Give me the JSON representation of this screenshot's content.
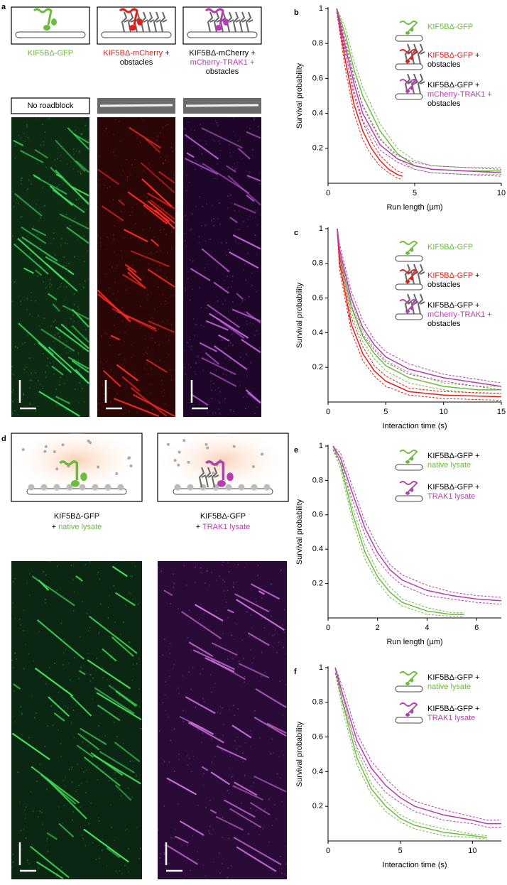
{
  "panels": {
    "a": {
      "label": "a",
      "captions": [
        [
          [
            {
              "text": "KIF5BΔ-GFP",
              "color": "#6dbb3f"
            }
          ]
        ],
        [
          [
            {
              "text": "KIF5BΔ-mCherry",
              "color": "#e0201b"
            },
            {
              "text": " +",
              "color": "#000000"
            }
          ],
          [
            {
              "text": "obstacles",
              "color": "#000000"
            }
          ]
        ],
        [
          [
            {
              "text": "KIF5BΔ-mCherry +",
              "color": "#000000"
            }
          ],
          [
            {
              "text": "mCherry-TRAK1 +",
              "color": "#b43fb0"
            }
          ],
          [
            {
              "text": "obstacles",
              "color": "#000000"
            }
          ]
        ]
      ],
      "roadblock": "No roadblock"
    },
    "d": {
      "label": "d",
      "captions": [
        [
          [
            {
              "text": "KIF5BΔ-GFP",
              "color": "#000000"
            }
          ],
          [
            {
              "text": "+ ",
              "color": "#000000"
            },
            {
              "text": "native lysate",
              "color": "#6dbb3f"
            }
          ]
        ],
        [
          [
            {
              "text": "KIF5BΔ-GFP",
              "color": "#000000"
            }
          ],
          [
            {
              "text": "+ ",
              "color": "#000000"
            },
            {
              "text": "TRAK1 lysate",
              "color": "#b43fb0"
            }
          ]
        ]
      ]
    }
  },
  "chart_data": [
    {
      "label": "b",
      "type": "line",
      "x_label": "Run length (µm)",
      "y_label": "Survival probability",
      "xlim": [
        0,
        10
      ],
      "ylim": [
        0,
        1
      ],
      "xticks": [
        0,
        5,
        10
      ],
      "yticks": [
        0.2,
        0.4,
        0.6,
        0.8,
        1
      ],
      "series": [
        {
          "legend": [
            [
              {
                "text": "KIF5BΔ-GFP",
                "color": "#6dbb3f"
              }
            ]
          ],
          "color": "#6dbb3f",
          "x": [
            0.5,
            1,
            1.5,
            2,
            3,
            4,
            5,
            6,
            8,
            10
          ],
          "values": [
            1,
            0.85,
            0.65,
            0.5,
            0.3,
            0.17,
            0.1,
            0.08,
            0.07,
            0.07
          ],
          "ci_low": [
            0.98,
            0.8,
            0.6,
            0.45,
            0.26,
            0.14,
            0.08,
            0.06,
            0.05,
            0.05
          ],
          "ci_high": [
            1,
            0.89,
            0.7,
            0.55,
            0.34,
            0.2,
            0.13,
            0.1,
            0.09,
            0.09
          ]
        },
        {
          "legend": [
            [
              {
                "text": "KIF5BΔ-GFP",
                "color": "#e0201b"
              },
              {
                "text": " +",
                "color": "#000000"
              }
            ],
            [
              {
                "text": "obstacles",
                "color": "#000000"
              }
            ]
          ],
          "color": "#e0201b",
          "x": [
            0.5,
            1,
            1.5,
            2,
            2.5,
            3,
            3.5,
            4,
            4.3
          ],
          "values": [
            1,
            0.7,
            0.45,
            0.3,
            0.2,
            0.13,
            0.08,
            0.05,
            0.04
          ],
          "ci_low": [
            0.98,
            0.65,
            0.4,
            0.25,
            0.16,
            0.1,
            0.06,
            0.03,
            0.02
          ],
          "ci_high": [
            1,
            0.75,
            0.5,
            0.35,
            0.24,
            0.16,
            0.11,
            0.07,
            0.06
          ]
        },
        {
          "legend": [
            [
              {
                "text": "KIF5BΔ-GFP +",
                "color": "#000000"
              }
            ],
            [
              {
                "text": "mCherry-TRAK1 +",
                "color": "#b43fb0"
              }
            ],
            [
              {
                "text": "obstacles",
                "color": "#000000"
              }
            ]
          ],
          "color": "#b43fb0",
          "x": [
            0.5,
            1,
            1.5,
            2,
            3,
            4,
            5,
            6,
            8,
            10
          ],
          "values": [
            1,
            0.78,
            0.57,
            0.4,
            0.22,
            0.14,
            0.1,
            0.08,
            0.07,
            0.06
          ],
          "ci_low": [
            0.98,
            0.74,
            0.53,
            0.36,
            0.19,
            0.12,
            0.08,
            0.06,
            0.05,
            0.04
          ],
          "ci_high": [
            1,
            0.82,
            0.61,
            0.44,
            0.25,
            0.16,
            0.12,
            0.1,
            0.09,
            0.08
          ]
        }
      ]
    },
    {
      "label": "c",
      "type": "line",
      "x_label": "Interaction time (s)",
      "y_label": "Survival probability",
      "xlim": [
        0,
        15
      ],
      "ylim": [
        0,
        1
      ],
      "xticks": [
        0,
        5,
        10,
        15
      ],
      "yticks": [
        0.2,
        0.4,
        0.6,
        0.8,
        1
      ],
      "series": [
        {
          "legend": [
            [
              {
                "text": "KIF5BΔ-GFP",
                "color": "#6dbb3f"
              }
            ]
          ],
          "color": "#6dbb3f",
          "x": [
            0.8,
            1,
            2,
            3,
            4,
            5,
            7,
            10,
            13,
            15
          ],
          "values": [
            1,
            0.85,
            0.55,
            0.38,
            0.28,
            0.21,
            0.14,
            0.09,
            0.07,
            0.07
          ],
          "ci_low": [
            0.97,
            0.82,
            0.52,
            0.35,
            0.25,
            0.18,
            0.11,
            0.07,
            0.05,
            0.05
          ],
          "ci_high": [
            1,
            0.88,
            0.58,
            0.41,
            0.31,
            0.24,
            0.17,
            0.11,
            0.09,
            0.09
          ]
        },
        {
          "legend": [
            [
              {
                "text": "KIF5BΔ-GFP",
                "color": "#e0201b"
              },
              {
                "text": " +",
                "color": "#000000"
              }
            ],
            [
              {
                "text": "obstacles",
                "color": "#000000"
              }
            ]
          ],
          "color": "#e0201b",
          "x": [
            0.8,
            1,
            2,
            3,
            4,
            5,
            7,
            10,
            15
          ],
          "values": [
            1,
            0.8,
            0.45,
            0.28,
            0.18,
            0.12,
            0.06,
            0.04,
            0.03
          ],
          "ci_low": [
            0.97,
            0.76,
            0.41,
            0.24,
            0.15,
            0.09,
            0.04,
            0.02,
            0.01
          ],
          "ci_high": [
            1,
            0.84,
            0.49,
            0.32,
            0.21,
            0.15,
            0.08,
            0.06,
            0.05
          ]
        },
        {
          "legend": [
            [
              {
                "text": "KIF5BΔ-GFP +",
                "color": "#000000"
              }
            ],
            [
              {
                "text": "mCherry-TRAK1 +",
                "color": "#b43fb0"
              }
            ],
            [
              {
                "text": "obstacles",
                "color": "#000000"
              }
            ]
          ],
          "color": "#b43fb0",
          "x": [
            0.8,
            1,
            2,
            3,
            4,
            5,
            7,
            10,
            13,
            15
          ],
          "values": [
            1,
            0.88,
            0.6,
            0.43,
            0.33,
            0.26,
            0.19,
            0.14,
            0.11,
            0.09
          ],
          "ci_low": [
            0.97,
            0.85,
            0.56,
            0.39,
            0.3,
            0.23,
            0.16,
            0.12,
            0.09,
            0.07
          ],
          "ci_high": [
            1,
            0.91,
            0.64,
            0.47,
            0.36,
            0.29,
            0.22,
            0.16,
            0.13,
            0.11
          ]
        }
      ]
    },
    {
      "label": "e",
      "type": "line",
      "x_label": "Run length (µm)",
      "y_label": "Survival probability",
      "xlim": [
        0,
        7
      ],
      "ylim": [
        0,
        1
      ],
      "xticks": [
        0,
        2,
        4,
        6
      ],
      "yticks": [
        0.2,
        0.4,
        0.6,
        0.8,
        1
      ],
      "series": [
        {
          "legend": [
            [
              {
                "text": "KIF5BΔ-GFP +",
                "color": "#000000"
              }
            ],
            [
              {
                "text": "native lysate",
                "color": "#6dbb3f"
              }
            ]
          ],
          "color": "#6dbb3f",
          "x": [
            0.2,
            0.5,
            1,
            1.5,
            2,
            2.5,
            3,
            4,
            5,
            5.5
          ],
          "values": [
            1,
            0.9,
            0.6,
            0.38,
            0.24,
            0.15,
            0.09,
            0.04,
            0.02,
            0.02
          ],
          "ci_low": [
            0.98,
            0.87,
            0.56,
            0.34,
            0.21,
            0.12,
            0.07,
            0.02,
            0.01,
            0.01
          ],
          "ci_high": [
            1,
            0.93,
            0.64,
            0.42,
            0.27,
            0.18,
            0.11,
            0.06,
            0.03,
            0.03
          ]
        },
        {
          "legend": [
            [
              {
                "text": "KIF5BΔ-GFP +",
                "color": "#000000"
              }
            ],
            [
              {
                "text": "TRAK1 lysate",
                "color": "#b43fb0"
              }
            ]
          ],
          "color": "#b43fb0",
          "x": [
            0.2,
            0.5,
            1,
            1.5,
            2,
            2.5,
            3,
            4,
            5,
            6,
            7
          ],
          "values": [
            1,
            0.93,
            0.72,
            0.52,
            0.38,
            0.28,
            0.22,
            0.16,
            0.13,
            0.11,
            0.1
          ],
          "ci_low": [
            0.98,
            0.9,
            0.68,
            0.48,
            0.34,
            0.25,
            0.19,
            0.13,
            0.11,
            0.09,
            0.08
          ],
          "ci_high": [
            1,
            0.96,
            0.76,
            0.56,
            0.42,
            0.31,
            0.25,
            0.19,
            0.15,
            0.13,
            0.12
          ]
        }
      ]
    },
    {
      "label": "f",
      "type": "line",
      "x_label": "Interaction time (s)",
      "y_label": "Survival probability",
      "xlim": [
        0,
        12
      ],
      "ylim": [
        0,
        1
      ],
      "xticks": [
        0,
        5,
        10
      ],
      "yticks": [
        0.2,
        0.4,
        0.6,
        0.8,
        1
      ],
      "series": [
        {
          "legend": [
            [
              {
                "text": "KIF5BΔ-GFP +",
                "color": "#000000"
              }
            ],
            [
              {
                "text": "native lysate",
                "color": "#6dbb3f"
              }
            ]
          ],
          "color": "#6dbb3f",
          "x": [
            0.5,
            1,
            2,
            3,
            4,
            5,
            6,
            8,
            10,
            11
          ],
          "values": [
            1,
            0.8,
            0.48,
            0.3,
            0.2,
            0.13,
            0.09,
            0.05,
            0.03,
            0.02
          ],
          "ci_low": [
            0.97,
            0.76,
            0.44,
            0.27,
            0.17,
            0.11,
            0.07,
            0.03,
            0.02,
            0.01
          ],
          "ci_high": [
            1,
            0.84,
            0.52,
            0.33,
            0.23,
            0.15,
            0.11,
            0.07,
            0.04,
            0.03
          ]
        },
        {
          "legend": [
            [
              {
                "text": "KIF5BΔ-GFP +",
                "color": "#000000"
              }
            ],
            [
              {
                "text": "TRAK1 lysate",
                "color": "#b43fb0"
              }
            ]
          ],
          "color": "#b43fb0",
          "x": [
            0.5,
            1,
            2,
            3,
            4,
            5,
            6,
            8,
            10,
            11,
            12
          ],
          "values": [
            1,
            0.85,
            0.58,
            0.42,
            0.32,
            0.25,
            0.2,
            0.15,
            0.12,
            0.1,
            0.1
          ],
          "ci_low": [
            0.97,
            0.81,
            0.54,
            0.38,
            0.28,
            0.22,
            0.17,
            0.12,
            0.1,
            0.08,
            0.08
          ],
          "ci_high": [
            1,
            0.89,
            0.62,
            0.46,
            0.36,
            0.28,
            0.23,
            0.18,
            0.14,
            0.12,
            0.12
          ]
        }
      ]
    }
  ]
}
